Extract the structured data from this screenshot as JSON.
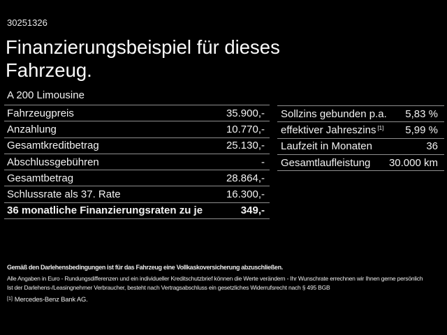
{
  "colors": {
    "background": "#000000",
    "text": "#f2f2f2",
    "divider": "#8f8f8f"
  },
  "header": {
    "vehicle_id": "30251326",
    "title_line1": "Finanzierungsbeispiel für dieses",
    "title_line2": "Fahrzeug.",
    "model": "A 200 Limousine"
  },
  "financing_table": {
    "rows": [
      {
        "label": "Fahrzeugpreis",
        "value": "35.900,-"
      },
      {
        "label": "Anzahlung",
        "value": "10.770,-"
      },
      {
        "label": "Gesamtkreditbetrag",
        "value": "25.130,-"
      },
      {
        "label": "Abschlussgebühren",
        "value": "-"
      },
      {
        "label": "Gesamtbetrag",
        "value": "28.864,-"
      },
      {
        "label": "Schlussrate als 37. Rate",
        "value": "16.300,-"
      },
      {
        "label": "36 monatliche Finanzierungsraten zu je",
        "value": "349,-"
      }
    ]
  },
  "conditions_table": {
    "rows": [
      {
        "label": "Sollzins gebunden p.a.",
        "sup": "",
        "value": "5,83 %"
      },
      {
        "label": "effektiver Jahreszins",
        "sup": "[1]",
        "value": "5,99 %"
      },
      {
        "label": "Laufzeit in Monaten",
        "sup": "",
        "value": "36"
      },
      {
        "label": "Gesamtlaufleistung",
        "sup": "",
        "value": "30.000 km"
      }
    ]
  },
  "fineprint": {
    "line1": "Gemäß den Darlehensbedingungen ist für das Fahrzeug eine Vollkaskoversicherung abzuschließen.",
    "line2": "Alle Angaben in Euro - Rundungsdifferenzen und ein individueller Kreditschutzbrief können die Werte verändern - Ihr Wunschrate errechnen wir Ihnen gerne persönlich",
    "line3": "Ist der Darlehens-/Leasingnehmer Verbraucher, besteht nach Vertragsabschluss ein gesetzliches Widerrufsrecht nach § 495 BGB",
    "line4_marker": "[1]",
    "line4_text": "Mercedes-Benz Bank AG."
  }
}
